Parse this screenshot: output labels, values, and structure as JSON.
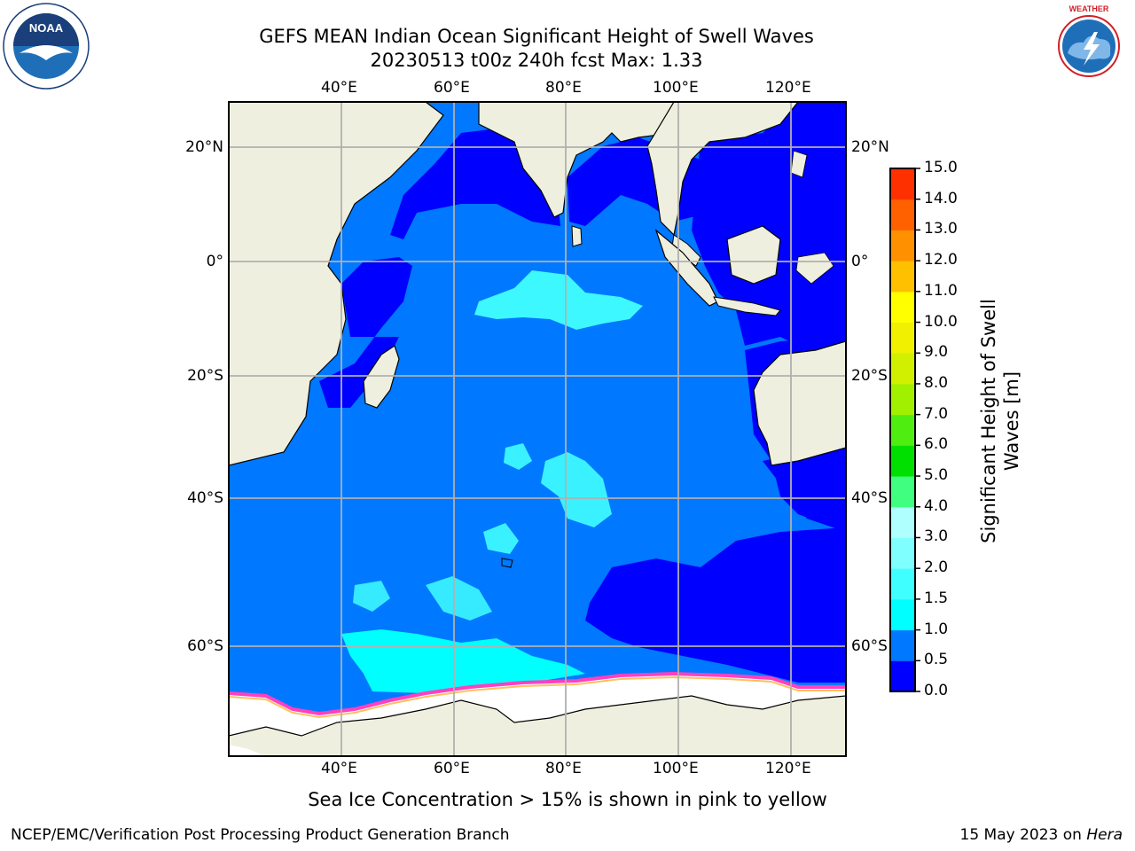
{
  "title": {
    "line1": "GEFS MEAN Indian Ocean Significant Height of Swell Waves",
    "line2": "20230513 t00z 240h fcst   Max: 1.33"
  },
  "logos": {
    "left": {
      "name": "noaa-logo",
      "text": "NOAA"
    },
    "right": {
      "name": "national-weather-service-logo",
      "text": "NATIONAL WEATHER SERVICE"
    }
  },
  "map": {
    "lon_labels_top": [
      "40°E",
      "60°E",
      "80°E",
      "100°E",
      "120°E"
    ],
    "lon_labels_bottom": [
      "40°E",
      "60°E",
      "80°E",
      "100°E",
      "120°E"
    ],
    "lat_labels_left": [
      "20°N",
      "0°",
      "20°S",
      "40°S",
      "60°S"
    ],
    "lat_labels_right": [
      "20°N",
      "0°",
      "20°S",
      "40°S",
      "60°S"
    ],
    "colors": {
      "land": "#efefdf",
      "ice": "#ffffff",
      "coast": "#000000",
      "grid": "#b0b0b0"
    }
  },
  "colorbar": {
    "title_line1": "Significant Height of Swell",
    "title_line2": "Waves [m]",
    "ticks": [
      "0.0",
      "0.5",
      "1.0",
      "1.5",
      "2.0",
      "3.0",
      "4.0",
      "5.0",
      "6.0",
      "7.0",
      "8.0",
      "9.0",
      "10.0",
      "11.0",
      "12.0",
      "13.0",
      "14.0",
      "15.0"
    ],
    "colors": [
      "#0000ff",
      "#0078ff",
      "#00ffff",
      "#40ffff",
      "#7fffff",
      "#b0ffff",
      "#40ff80",
      "#00e000",
      "#50ee10",
      "#a0f000",
      "#d0f000",
      "#f0f000",
      "#ffff00",
      "#ffc000",
      "#ff9000",
      "#ff6000",
      "#ff3000",
      "#ff0000"
    ]
  },
  "footer": {
    "note": "Sea Ice Concentration > 15% is shown in pink to yellow",
    "left": "NCEP/EMC/Verification Post Processing Product Generation Branch",
    "right_date": "15 May 2023 on",
    "right_machine": "Hera"
  }
}
